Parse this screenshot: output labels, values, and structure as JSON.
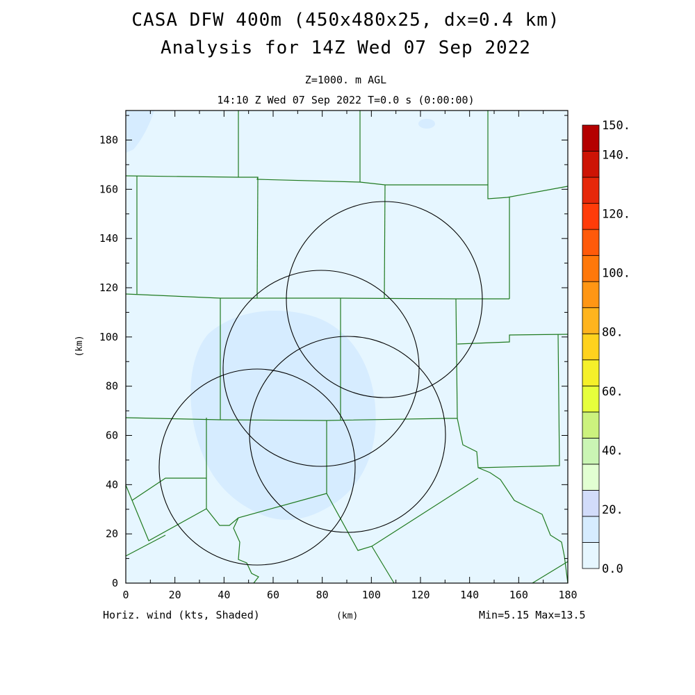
{
  "header": {
    "title_line1": "CASA DFW 400m (450x480x25, dx=0.4 km)",
    "title_line2": "Analysis for 14Z Wed 07 Sep 2022",
    "level": "Z=1000. m AGL",
    "valid_time": "14:10 Z Wed 07 Sep 2022   T=0.0 s (0:00:00)"
  },
  "footer": {
    "field_label": "Horiz. wind (kts, Shaded)",
    "x_unit": "(km)",
    "minmax": "Min=5.15 Max=13.5"
  },
  "axes": {
    "x_ticks": [
      "0",
      "20",
      "40",
      "60",
      "80",
      "100",
      "120",
      "140",
      "160",
      "180"
    ],
    "y_ticks": [
      "0",
      "20",
      "40",
      "60",
      "80",
      "100",
      "120",
      "140",
      "160",
      "180"
    ],
    "y_unit": "(km)",
    "x_range": [
      0,
      180
    ],
    "y_range": [
      0,
      192
    ]
  },
  "colorbar": {
    "labels": [
      "0.0",
      "20.",
      "40.",
      "60.",
      "80.",
      "100.",
      "120.",
      "140.",
      "150."
    ],
    "colors": [
      "#e6f6ff",
      "#d6ecff",
      "#d2dcfa",
      "#e2ffd2",
      "#caf5b4",
      "#ccf27e",
      "#e6ff3c",
      "#f5f02a",
      "#ffd21e",
      "#ffb41e",
      "#ff9614",
      "#ff780a",
      "#ff5a0a",
      "#ff3c0a",
      "#e6280a",
      "#cd1405",
      "#b40000"
    ]
  },
  "map": {
    "background_color": "#e6f6ff",
    "wind_shade_color": "#d6ecff",
    "county_line_color": "#1f7a1f",
    "radar_ring_color": "#000000"
  }
}
